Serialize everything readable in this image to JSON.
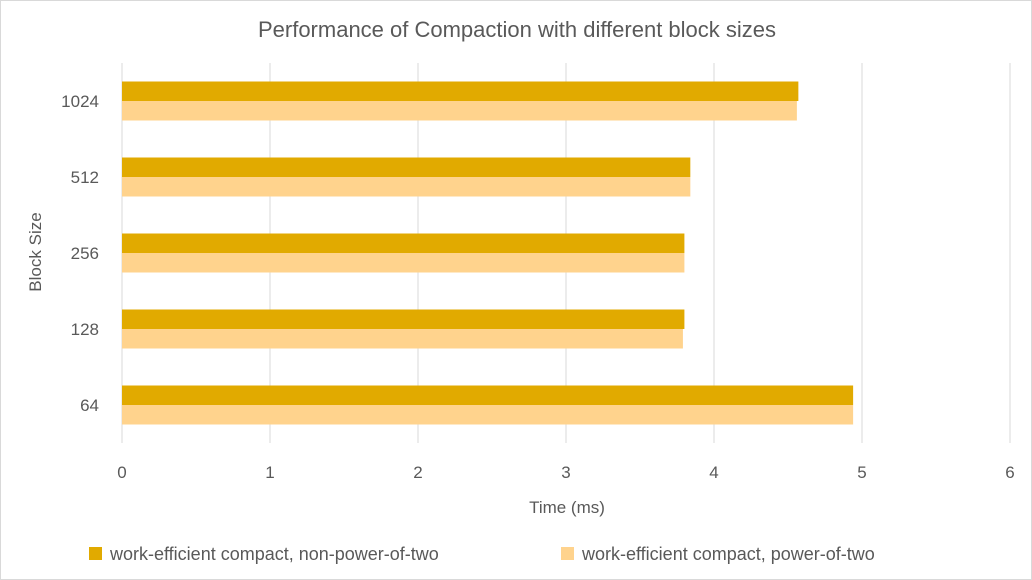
{
  "chart_data": {
    "type": "bar",
    "orientation": "horizontal",
    "title": "Performance of Compaction with different block sizes",
    "xlabel": "Time (ms)",
    "ylabel": "Block Size",
    "categories": [
      "64",
      "128",
      "256",
      "512",
      "1024"
    ],
    "series": [
      {
        "name": "work-efficient compact, non-power-of-two",
        "color": "#E1AA00",
        "values": [
          4.94,
          3.8,
          3.8,
          3.84,
          4.57
        ]
      },
      {
        "name": "work-efficient compact, power-of-two",
        "color": "#FFD38D",
        "values": [
          4.94,
          3.79,
          3.8,
          3.84,
          4.56
        ]
      }
    ],
    "xlim": [
      0,
      6
    ],
    "xticks": [
      "0",
      "1",
      "2",
      "3",
      "4",
      "5",
      "6"
    ],
    "grid": true,
    "legend_position": "bottom"
  }
}
